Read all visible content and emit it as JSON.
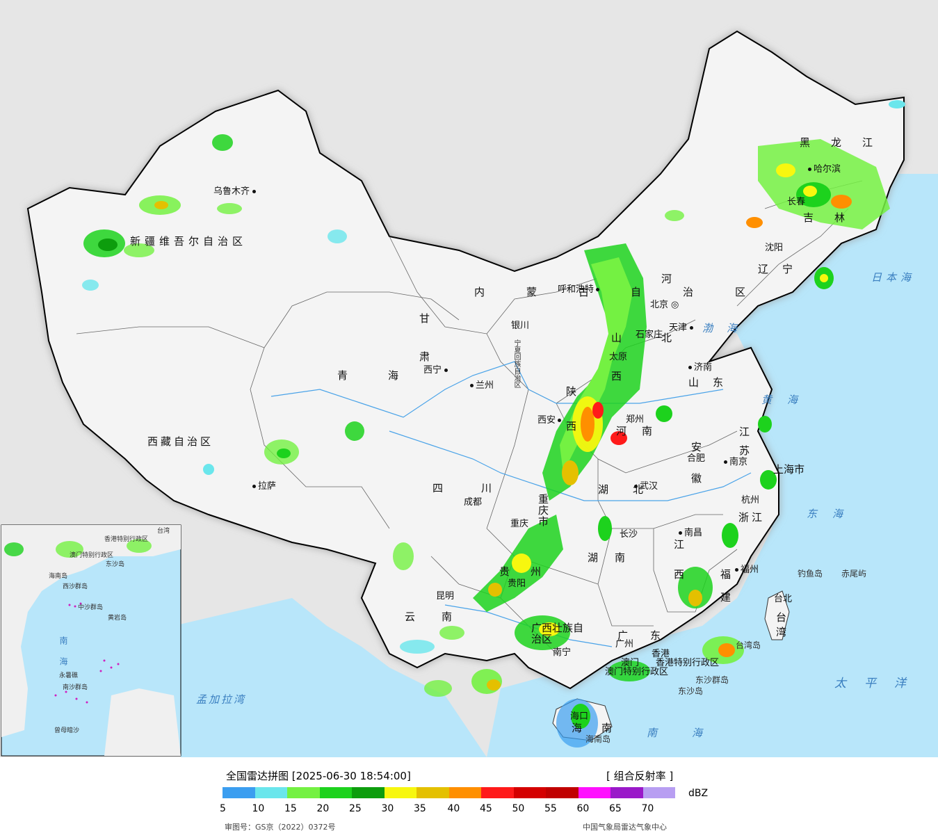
{
  "title": "全国雷达拼图",
  "timestamp": "[2025-06-30 18:54:00]",
  "product": "[ 组合反射率 ]",
  "unit": "dBZ",
  "approval_number": "审图号：GS京（2022）0372号",
  "source": "中国气象局雷达气象中心",
  "legend": {
    "colors": [
      "#3b9ef0",
      "#6ae6ec",
      "#74f142",
      "#1dd21d",
      "#0d9d0d",
      "#f7f70f",
      "#e4c000",
      "#ff8f00",
      "#ff1a1a",
      "#d40000",
      "#c00000",
      "#ff10ff",
      "#9a19c9",
      "#b89ef2"
    ],
    "ticks": [
      "5",
      "10",
      "15",
      "20",
      "25",
      "30",
      "35",
      "40",
      "45",
      "50",
      "55",
      "60",
      "65",
      "70"
    ]
  },
  "cities": [
    "乌鲁木齐",
    "拉萨",
    "西宁",
    "兰州",
    "银川",
    "呼和浩特",
    "北京",
    "天津",
    "石家庄",
    "太原",
    "济南",
    "郑州",
    "西安",
    "成都",
    "重庆",
    "武汉",
    "合肥",
    "南京",
    "上海",
    "杭州",
    "南昌",
    "长沙",
    "贵阳",
    "昆明",
    "南宁",
    "广州",
    "福州",
    "台北",
    "海口",
    "沈阳",
    "长春",
    "哈尔滨",
    "香港",
    "澳门"
  ],
  "provinces": [
    "新疆维吾尔自治区",
    "西藏自治区",
    "青海",
    "甘肃",
    "内蒙古自治区",
    "宁夏回族自治区",
    "陕西",
    "山西",
    "河北",
    "山东",
    "河南",
    "湖北",
    "江苏",
    "安徽",
    "上海市",
    "浙江",
    "江西",
    "湖南",
    "福建",
    "台湾",
    "四川",
    "重庆市",
    "贵州",
    "云南",
    "广西壮族自治区",
    "广东",
    "香港特别行政区",
    "澳门特别行政区",
    "海南",
    "辽宁",
    "吉林",
    "黑龙江"
  ],
  "seas": [
    "日本海",
    "渤海",
    "黄海",
    "东海",
    "太平洋",
    "南海",
    "孟加拉湾"
  ],
  "islands": [
    "钓鱼岛",
    "赤尾屿",
    "台湾岛",
    "东沙群岛",
    "东沙岛",
    "海南岛"
  ],
  "inset": {
    "labels": [
      "南海",
      "西沙群岛",
      "中沙群岛",
      "南沙群岛",
      "黄岩岛",
      "永暑礁",
      "曾母暗沙",
      "东沙岛",
      "香港特别行政区",
      "澳门特别行政区",
      "台湾",
      "海南岛"
    ]
  }
}
